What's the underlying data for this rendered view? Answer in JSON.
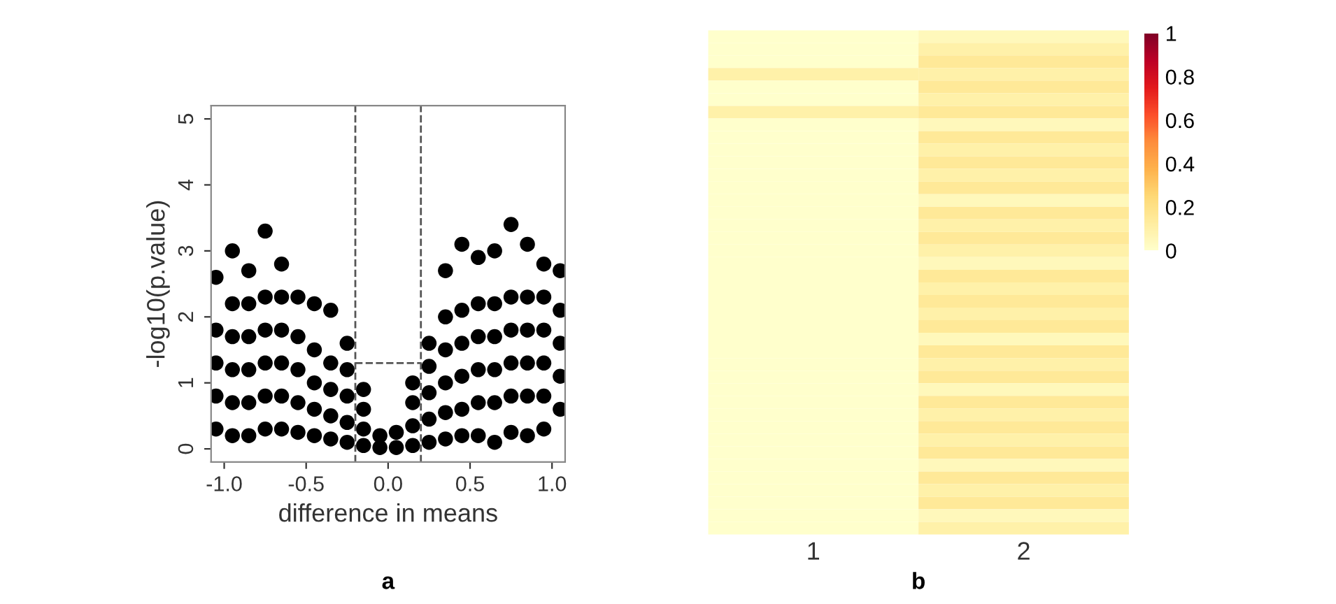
{
  "chart_data": [
    {
      "type": "scatter",
      "xlabel": "difference in means",
      "ylabel": "-log10(p.value)",
      "xlim": [
        -1.08,
        1.08
      ],
      "ylim": [
        -0.2,
        5.2
      ],
      "xticks": [
        {
          "value": -1,
          "label": "-1.0"
        },
        {
          "value": -0.5,
          "label": "-0.5"
        },
        {
          "value": 0,
          "label": "0.0"
        },
        {
          "value": 0.5,
          "label": "0.5"
        },
        {
          "value": 1,
          "label": "1.0"
        }
      ],
      "yticks": [
        0,
        1,
        2,
        3,
        4,
        5
      ],
      "grid": false,
      "legend": false,
      "marker": "circle",
      "ref_lines": [
        {
          "axis": "x",
          "value": -0.2,
          "line_style": "dashed",
          "color": "#555555"
        },
        {
          "axis": "x",
          "value": 0.2,
          "line_style": "dashed",
          "color": "#555555"
        },
        {
          "axis": "y",
          "value": 1.3,
          "line_style": "dashed",
          "color": "#555555"
        }
      ],
      "annotations": [
        "a"
      ],
      "series": [
        {
          "color": "#000000",
          "x": [
            -1.05,
            -1.05,
            -1.05,
            -1.05,
            -1.05,
            -0.95,
            -0.95,
            -0.95,
            -0.95,
            -0.95,
            -0.95,
            -0.85,
            -0.85,
            -0.85,
            -0.85,
            -0.85,
            -0.85,
            -0.75,
            -0.75,
            -0.75,
            -0.75,
            -0.75,
            -0.75,
            -0.65,
            -0.65,
            -0.65,
            -0.65,
            -0.65,
            -0.65,
            -0.55,
            -0.55,
            -0.55,
            -0.55,
            -0.55,
            -0.45,
            -0.45,
            -0.45,
            -0.45,
            -0.45,
            -0.35,
            -0.35,
            -0.35,
            -0.35,
            -0.35,
            -0.25,
            -0.25,
            -0.25,
            -0.25,
            -0.25,
            -0.15,
            -0.15,
            -0.15,
            -0.15,
            -0.05,
            -0.05,
            0.05,
            0.05,
            0.15,
            0.15,
            0.15,
            0.15,
            0.25,
            0.25,
            0.25,
            0.25,
            0.25,
            0.35,
            0.35,
            0.35,
            0.35,
            0.35,
            0.35,
            0.45,
            0.45,
            0.45,
            0.45,
            0.45,
            0.45,
            0.55,
            0.55,
            0.55,
            0.55,
            0.55,
            0.55,
            0.65,
            0.65,
            0.65,
            0.65,
            0.65,
            0.65,
            0.75,
            0.75,
            0.75,
            0.75,
            0.75,
            0.75,
            0.85,
            0.85,
            0.85,
            0.85,
            0.85,
            0.85,
            0.95,
            0.95,
            0.95,
            0.95,
            0.95,
            0.95,
            1.05,
            1.05,
            1.05,
            1.05,
            1.05
          ],
          "values": [
            0.3,
            0.8,
            1.3,
            1.8,
            2.6,
            0.2,
            0.7,
            1.2,
            1.7,
            2.2,
            3.0,
            0.2,
            0.7,
            1.2,
            1.7,
            2.2,
            2.7,
            0.3,
            0.8,
            1.3,
            1.8,
            2.3,
            3.3,
            0.3,
            0.8,
            1.3,
            1.8,
            2.3,
            2.8,
            0.25,
            0.7,
            1.2,
            1.7,
            2.3,
            0.2,
            0.6,
            1.0,
            1.5,
            2.2,
            0.15,
            0.5,
            0.9,
            1.3,
            2.1,
            0.1,
            0.4,
            0.8,
            1.2,
            1.6,
            0.05,
            0.3,
            0.6,
            0.9,
            0.02,
            0.2,
            0.02,
            0.25,
            0.05,
            0.35,
            0.7,
            1.0,
            0.1,
            0.45,
            0.85,
            1.25,
            1.6,
            0.15,
            0.55,
            1.0,
            1.5,
            2.0,
            2.7,
            0.2,
            0.6,
            1.1,
            1.6,
            2.1,
            3.1,
            0.2,
            0.7,
            1.2,
            1.7,
            2.2,
            2.9,
            0.1,
            0.7,
            1.2,
            1.7,
            2.2,
            3.0,
            0.25,
            0.8,
            1.3,
            1.8,
            2.3,
            3.4,
            0.2,
            0.8,
            1.3,
            1.8,
            2.3,
            3.1,
            0.3,
            0.8,
            1.3,
            1.8,
            2.3,
            2.8,
            0.6,
            1.1,
            1.6,
            2.1,
            2.7
          ]
        }
      ]
    },
    {
      "type": "heatmap",
      "categories": [
        "1",
        "2"
      ],
      "clim": [
        0,
        1
      ],
      "cticks": [
        0,
        0.2,
        0.4,
        0.6,
        0.8,
        1
      ],
      "annotations": [
        "b"
      ],
      "y_categories": [
        null,
        null,
        null,
        null,
        null,
        null,
        null,
        null,
        null,
        null,
        null,
        null,
        null,
        null,
        null,
        null,
        null,
        null,
        null,
        null,
        null,
        null,
        null,
        null,
        null,
        null,
        null,
        null,
        null,
        null,
        null,
        null,
        null,
        null,
        null,
        null,
        null,
        null,
        null,
        null
      ],
      "cells": [
        [
          0,
          0.05
        ],
        [
          0,
          0.1
        ],
        [
          0,
          0.15
        ],
        [
          0.1,
          0.1
        ],
        [
          0,
          0.15
        ],
        [
          0,
          0.1
        ],
        [
          0.1,
          0.15
        ],
        [
          0,
          0.05
        ],
        [
          0,
          0.15
        ],
        [
          0,
          0.1
        ],
        [
          0,
          0.15
        ],
        [
          0,
          0.1
        ],
        [
          0,
          0.15
        ],
        [
          0,
          0.05
        ],
        [
          0,
          0.15
        ],
        [
          0,
          0.1
        ],
        [
          0,
          0.15
        ],
        [
          0,
          0.1
        ],
        [
          0,
          0.05
        ],
        [
          0,
          0.15
        ],
        [
          0,
          0.1
        ],
        [
          0,
          0.15
        ],
        [
          0,
          0.1
        ],
        [
          0,
          0.15
        ],
        [
          0,
          0.05
        ],
        [
          0,
          0.15
        ],
        [
          0,
          0.1
        ],
        [
          0,
          0.15
        ],
        [
          0,
          0.05
        ],
        [
          0,
          0.15
        ],
        [
          0,
          0.1
        ],
        [
          0,
          0.15
        ],
        [
          0,
          0.1
        ],
        [
          0,
          0.15
        ],
        [
          0,
          0.05
        ],
        [
          0,
          0.15
        ],
        [
          0,
          0.1
        ],
        [
          0,
          0.15
        ],
        [
          0,
          0.05
        ],
        [
          0,
          0.1
        ]
      ]
    }
  ]
}
